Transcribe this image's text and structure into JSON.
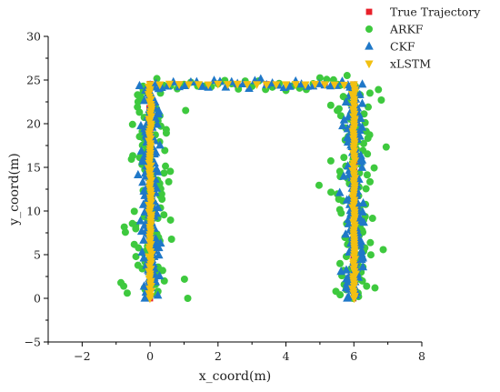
{
  "chart_data": {
    "type": "scatter",
    "xlabel": "x_coord(m)",
    "ylabel": "y_coord(m)",
    "xlim": [
      -3,
      8
    ],
    "ylim": [
      -5,
      30
    ],
    "xticks": [
      -2,
      0,
      2,
      4,
      6,
      8
    ],
    "yticks": [
      -5,
      0,
      5,
      10,
      15,
      20,
      25,
      30
    ],
    "grid": false,
    "legend_position": "top-right",
    "trajectory_corners": [
      [
        0,
        0
      ],
      [
        0,
        24.5
      ],
      [
        6,
        24.5
      ],
      [
        6,
        0
      ]
    ],
    "series": [
      {
        "name": "True Trajectory",
        "marker": "square",
        "color": "#e8202a",
        "spread": 0.03
      },
      {
        "name": "ARKF",
        "marker": "circle",
        "color": "#3ec93e",
        "spread": 0.55
      },
      {
        "name": "CKF",
        "marker": "triangle-up",
        "color": "#1f78c8",
        "spread": 0.28
      },
      {
        "name": "xLSTM",
        "marker": "triangle-down",
        "color": "#f2c011",
        "spread": 0.04
      }
    ]
  }
}
